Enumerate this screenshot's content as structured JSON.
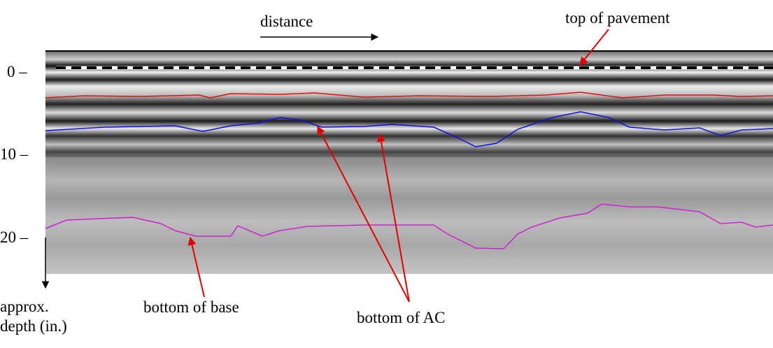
{
  "annotations": {
    "distance": "distance",
    "top_of_pavement": "top of pavement",
    "bottom_of_base": "bottom of base",
    "bottom_of_ac": "bottom of AC"
  },
  "depth_axis": {
    "ticks": [
      "0 –",
      "10 –",
      "20 –"
    ],
    "label": [
      "approx.",
      "depth (in.)"
    ]
  }
}
